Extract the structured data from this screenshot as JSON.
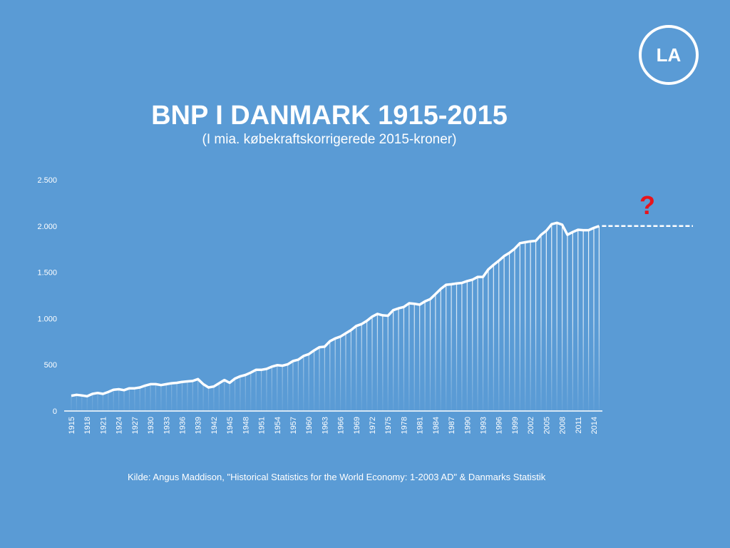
{
  "logo": "LA",
  "chart_data": {
    "type": "line",
    "title": "BNP I DANMARK 1915-2015",
    "subtitle": "(I mia. købekraftskorrigerede 2015-kroner)",
    "source": "Kilde: Angus Maddison, \"Historical Statistics for the World Economy: 1-2003 AD\" & Danmarks Statistik",
    "annotation": "?",
    "color": "#ffffff",
    "x": [
      1915,
      1916,
      1917,
      1918,
      1919,
      1920,
      1921,
      1922,
      1923,
      1924,
      1925,
      1926,
      1927,
      1928,
      1929,
      1930,
      1931,
      1932,
      1933,
      1934,
      1935,
      1936,
      1937,
      1938,
      1939,
      1940,
      1941,
      1942,
      1943,
      1944,
      1945,
      1946,
      1947,
      1948,
      1949,
      1950,
      1951,
      1952,
      1953,
      1954,
      1955,
      1956,
      1957,
      1958,
      1959,
      1960,
      1961,
      1962,
      1963,
      1964,
      1965,
      1966,
      1967,
      1968,
      1969,
      1970,
      1971,
      1972,
      1973,
      1974,
      1975,
      1976,
      1977,
      1978,
      1979,
      1980,
      1981,
      1982,
      1983,
      1984,
      1985,
      1986,
      1987,
      1988,
      1989,
      1990,
      1991,
      1992,
      1993,
      1994,
      1995,
      1996,
      1997,
      1998,
      1999,
      2000,
      2001,
      2002,
      2003,
      2004,
      2005,
      2006,
      2007,
      2008,
      2009,
      2010,
      2011,
      2012,
      2013,
      2014,
      2015
    ],
    "values": [
      165,
      175,
      168,
      160,
      185,
      195,
      185,
      205,
      230,
      235,
      225,
      245,
      245,
      255,
      275,
      290,
      290,
      280,
      290,
      300,
      305,
      315,
      320,
      325,
      345,
      290,
      255,
      265,
      300,
      335,
      305,
      350,
      375,
      390,
      415,
      445,
      445,
      455,
      480,
      495,
      490,
      505,
      540,
      555,
      595,
      615,
      655,
      690,
      695,
      755,
      785,
      805,
      840,
      875,
      920,
      940,
      975,
      1020,
      1050,
      1035,
      1030,
      1090,
      1110,
      1125,
      1165,
      1160,
      1150,
      1185,
      1210,
      1265,
      1320,
      1365,
      1370,
      1380,
      1385,
      1405,
      1420,
      1450,
      1450,
      1530,
      1580,
      1625,
      1675,
      1710,
      1755,
      1815,
      1825,
      1835,
      1840,
      1905,
      1950,
      2020,
      2035,
      2015,
      1905,
      1935,
      1960,
      1955,
      1955,
      1980,
      2000
    ],
    "xlim": [
      1915,
      2014
    ],
    "xticks": [
      1915,
      1918,
      1921,
      1924,
      1927,
      1930,
      1933,
      1936,
      1939,
      1942,
      1945,
      1948,
      1951,
      1954,
      1957,
      1960,
      1963,
      1966,
      1969,
      1972,
      1975,
      1978,
      1981,
      1984,
      1987,
      1990,
      1993,
      1996,
      1999,
      2002,
      2005,
      2008,
      2011,
      2014
    ],
    "ylim": [
      0,
      2500
    ],
    "yticks": [
      0,
      500,
      {
        "value": 1000,
        "label": "1.000"
      },
      {
        "value": 1500,
        "label": "1.500"
      },
      {
        "value": 2000,
        "label": "2.000"
      },
      {
        "value": 2500,
        "label": "2.500"
      }
    ]
  }
}
